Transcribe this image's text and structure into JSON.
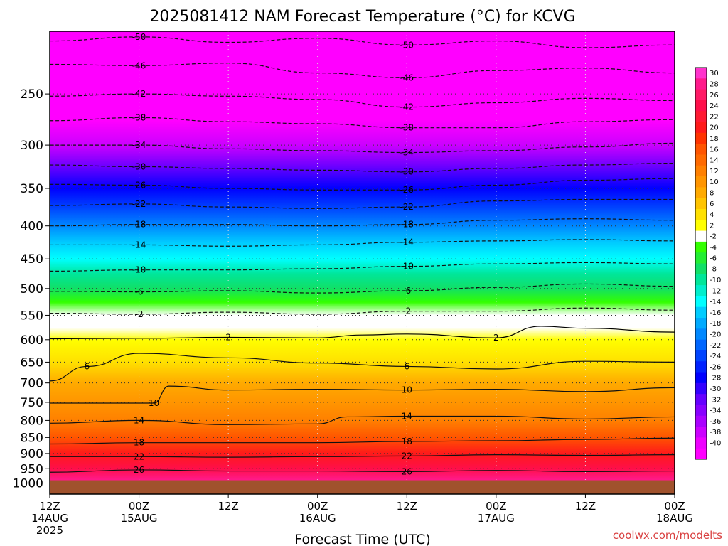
{
  "chart_data": {
    "type": "heatmap",
    "title": "2025081412 NAM Forecast Temperature (°C) for KCVG",
    "xlabel": "Forecast Time (UTC)",
    "ylabel": "",
    "credit": "coolwx.com/modelts",
    "y_axis": {
      "scale": "log",
      "reversed": true,
      "units": "hPa",
      "range": [
        1040,
        200
      ],
      "ticks": [
        "250",
        "300",
        "350",
        "400",
        "450",
        "500",
        "550",
        "600",
        "650",
        "700",
        "750",
        "800",
        "850",
        "900",
        "950",
        "1000"
      ]
    },
    "x_axis": {
      "units": "forecast hours",
      "range": [
        0,
        84
      ],
      "ticks": [
        {
          "h": 0,
          "line1": "12Z",
          "line2": "14AUG",
          "line3": "2025"
        },
        {
          "h": 12,
          "line1": "00Z",
          "line2": "15AUG",
          "line3": ""
        },
        {
          "h": 24,
          "line1": "12Z",
          "line2": "",
          "line3": ""
        },
        {
          "h": 36,
          "line1": "00Z",
          "line2": "16AUG",
          "line3": ""
        },
        {
          "h": 48,
          "line1": "12Z",
          "line2": "",
          "line3": ""
        },
        {
          "h": 60,
          "line1": "00Z",
          "line2": "17AUG",
          "line3": ""
        },
        {
          "h": 72,
          "line1": "12Z",
          "line2": "",
          "line3": ""
        },
        {
          "h": 84,
          "line1": "00Z",
          "line2": "18AUG",
          "line3": ""
        }
      ]
    },
    "grid": true,
    "surface_pressure_hpa": 990,
    "colorbar": {
      "position": "right",
      "labels": [
        "30",
        "28",
        "26",
        "24",
        "22",
        "20",
        "18",
        "16",
        "14",
        "12",
        "10",
        "8",
        "6",
        "4",
        "2",
        "-2",
        "-4",
        "-6",
        "-8",
        "-10",
        "-12",
        "-14",
        "-16",
        "-18",
        "-20",
        "-22",
        "-24",
        "-26",
        "-28",
        "-30",
        "-32",
        "-34",
        "-36",
        "-38",
        "-40"
      ],
      "colors": [
        "#ff33cc",
        "#ff1a8c",
        "#ff1a66",
        "#ff0f4a",
        "#ff1a33",
        "#ff1a1a",
        "#ff3300",
        "#ff5500",
        "#ff6a00",
        "#ff8000",
        "#ff9500",
        "#ffaa00",
        "#ffc400",
        "#ffe000",
        "#ffff00",
        "#ffffff",
        "#33ff00",
        "#22ee33",
        "#11e066",
        "#00e699",
        "#00eecc",
        "#00ffff",
        "#00ccff",
        "#00aaff",
        "#0088ff",
        "#0066ff",
        "#0044ff",
        "#0022ff",
        "#0000ff",
        "#3300ff",
        "#6600ff",
        "#8800ff",
        "#aa00ff",
        "#cc00ff",
        "#ee00ff",
        "#ff00ff"
      ]
    },
    "profile": [
      {
        "p": 200,
        "t": -58
      },
      {
        "p": 225,
        "t": -52
      },
      {
        "p": 250,
        "t": -46
      },
      {
        "p": 275,
        "t": -41
      },
      {
        "p": 300,
        "t": -36
      },
      {
        "p": 325,
        "t": -31
      },
      {
        "p": 350,
        "t": -27
      },
      {
        "p": 375,
        "t": -23
      },
      {
        "p": 400,
        "t": -19
      },
      {
        "p": 425,
        "t": -15.5
      },
      {
        "p": 450,
        "t": -12
      },
      {
        "p": 475,
        "t": -9
      },
      {
        "p": 500,
        "t": -6
      },
      {
        "p": 525,
        "t": -3.5
      },
      {
        "p": 550,
        "t": -1
      },
      {
        "p": 575,
        "t": 1
      },
      {
        "p": 600,
        "t": 2.5
      },
      {
        "p": 650,
        "t": 5.5
      },
      {
        "p": 700,
        "t": 8.5
      },
      {
        "p": 750,
        "t": 11
      },
      {
        "p": 800,
        "t": 13.5
      },
      {
        "p": 850,
        "t": 17
      },
      {
        "p": 900,
        "t": 21
      },
      {
        "p": 950,
        "t": 25
      },
      {
        "p": 990,
        "t": 29
      }
    ],
    "contours": [
      {
        "label": "-50",
        "style": "dashed",
        "points": [
          [
            0,
            207
          ],
          [
            12,
            204
          ],
          [
            24,
            208
          ],
          [
            36,
            205
          ],
          [
            48,
            210
          ],
          [
            60,
            207
          ],
          [
            72,
            212
          ],
          [
            84,
            210
          ]
        ]
      },
      {
        "label": "-46",
        "style": "dashed",
        "points": [
          [
            0,
            225
          ],
          [
            12,
            226
          ],
          [
            24,
            224
          ],
          [
            36,
            232
          ],
          [
            48,
            236
          ],
          [
            60,
            230
          ],
          [
            72,
            228
          ],
          [
            84,
            232
          ]
        ]
      },
      {
        "label": "-42",
        "style": "dashed",
        "points": [
          [
            0,
            252
          ],
          [
            12,
            250
          ],
          [
            24,
            252
          ],
          [
            36,
            255
          ],
          [
            48,
            262
          ],
          [
            60,
            258
          ],
          [
            72,
            254
          ],
          [
            84,
            256
          ]
        ]
      },
      {
        "label": "-38",
        "style": "dashed",
        "points": [
          [
            0,
            275
          ],
          [
            12,
            272
          ],
          [
            24,
            276
          ],
          [
            36,
            278
          ],
          [
            48,
            282
          ],
          [
            60,
            282
          ],
          [
            72,
            276
          ],
          [
            84,
            274
          ]
        ]
      },
      {
        "label": "-34",
        "style": "dashed",
        "points": [
          [
            0,
            300
          ],
          [
            12,
            300
          ],
          [
            24,
            304
          ],
          [
            36,
            306
          ],
          [
            48,
            308
          ],
          [
            60,
            306
          ],
          [
            72,
            302
          ],
          [
            84,
            298
          ]
        ]
      },
      {
        "label": "-30",
        "style": "dashed",
        "points": [
          [
            0,
            322
          ],
          [
            12,
            324
          ],
          [
            24,
            326
          ],
          [
            36,
            328
          ],
          [
            48,
            330
          ],
          [
            60,
            326
          ],
          [
            72,
            322
          ],
          [
            84,
            320
          ]
        ]
      },
      {
        "label": "-26",
        "style": "dashed",
        "points": [
          [
            0,
            345
          ],
          [
            12,
            346
          ],
          [
            24,
            350
          ],
          [
            36,
            352
          ],
          [
            48,
            352
          ],
          [
            60,
            346
          ],
          [
            72,
            340
          ],
          [
            84,
            338
          ]
        ]
      },
      {
        "label": "-22",
        "style": "dashed",
        "points": [
          [
            0,
            372
          ],
          [
            12,
            370
          ],
          [
            24,
            374
          ],
          [
            36,
            376
          ],
          [
            48,
            374
          ],
          [
            60,
            366
          ],
          [
            72,
            364
          ],
          [
            84,
            364
          ]
        ]
      },
      {
        "label": "-18",
        "style": "dashed",
        "points": [
          [
            0,
            400
          ],
          [
            12,
            398
          ],
          [
            24,
            398
          ],
          [
            36,
            400
          ],
          [
            48,
            398
          ],
          [
            60,
            392
          ],
          [
            72,
            390
          ],
          [
            84,
            392
          ]
        ]
      },
      {
        "label": "-14",
        "style": "dashed",
        "points": [
          [
            0,
            428
          ],
          [
            12,
            428
          ],
          [
            24,
            430
          ],
          [
            36,
            428
          ],
          [
            48,
            424
          ],
          [
            60,
            422
          ],
          [
            72,
            420
          ],
          [
            84,
            422
          ]
        ]
      },
      {
        "label": "-10",
        "style": "dashed",
        "points": [
          [
            0,
            470
          ],
          [
            12,
            468
          ],
          [
            24,
            468
          ],
          [
            36,
            466
          ],
          [
            48,
            462
          ],
          [
            60,
            458
          ],
          [
            72,
            456
          ],
          [
            84,
            458
          ]
        ]
      },
      {
        "label": "-6",
        "style": "dashed",
        "points": [
          [
            0,
            505
          ],
          [
            12,
            506
          ],
          [
            24,
            504
          ],
          [
            36,
            508
          ],
          [
            48,
            504
          ],
          [
            60,
            498
          ],
          [
            72,
            492
          ],
          [
            84,
            496
          ]
        ]
      },
      {
        "label": "-2",
        "style": "dashed",
        "points": [
          [
            0,
            546
          ],
          [
            12,
            548
          ],
          [
            24,
            544
          ],
          [
            36,
            548
          ],
          [
            48,
            542
          ],
          [
            60,
            542
          ],
          [
            72,
            536
          ],
          [
            84,
            540
          ]
        ]
      },
      {
        "label": "2",
        "style": "solid",
        "points": [
          [
            0,
            598
          ],
          [
            12,
            597
          ],
          [
            24,
            595
          ],
          [
            36,
            596
          ],
          [
            42,
            590
          ],
          [
            48,
            588
          ],
          [
            60,
            596
          ],
          [
            66,
            572
          ],
          [
            72,
            576
          ],
          [
            84,
            584
          ]
        ]
      },
      {
        "label": "6",
        "style": "solid",
        "points": [
          [
            0,
            695
          ],
          [
            5,
            660
          ],
          [
            12,
            630
          ],
          [
            24,
            640
          ],
          [
            36,
            652
          ],
          [
            48,
            660
          ],
          [
            60,
            666
          ],
          [
            72,
            648
          ],
          [
            84,
            650
          ]
        ]
      },
      {
        "label": "10",
        "style": "solid",
        "points": [
          [
            0,
            752
          ],
          [
            14,
            752
          ],
          [
            16,
            708
          ],
          [
            24,
            718
          ],
          [
            36,
            716
          ],
          [
            48,
            718
          ],
          [
            60,
            716
          ],
          [
            72,
            722
          ],
          [
            84,
            712
          ]
        ]
      },
      {
        "label": "14",
        "style": "solid",
        "points": [
          [
            0,
            808
          ],
          [
            12,
            800
          ],
          [
            24,
            812
          ],
          [
            36,
            810
          ],
          [
            40,
            790
          ],
          [
            48,
            788
          ],
          [
            60,
            788
          ],
          [
            72,
            796
          ],
          [
            84,
            790
          ]
        ]
      },
      {
        "label": "18",
        "style": "solid",
        "points": [
          [
            0,
            870
          ],
          [
            12,
            866
          ],
          [
            24,
            866
          ],
          [
            36,
            866
          ],
          [
            48,
            862
          ],
          [
            60,
            860
          ],
          [
            72,
            856
          ],
          [
            84,
            852
          ]
        ]
      },
      {
        "label": "22",
        "style": "solid",
        "points": [
          [
            0,
            910
          ],
          [
            12,
            910
          ],
          [
            24,
            912
          ],
          [
            36,
            910
          ],
          [
            48,
            908
          ],
          [
            60,
            904
          ],
          [
            72,
            906
          ],
          [
            84,
            904
          ]
        ]
      },
      {
        "label": "26",
        "style": "solid",
        "points": [
          [
            0,
            962
          ],
          [
            12,
            954
          ],
          [
            24,
            958
          ],
          [
            36,
            958
          ],
          [
            48,
            960
          ],
          [
            60,
            956
          ],
          [
            72,
            960
          ],
          [
            84,
            958
          ]
        ]
      }
    ]
  }
}
